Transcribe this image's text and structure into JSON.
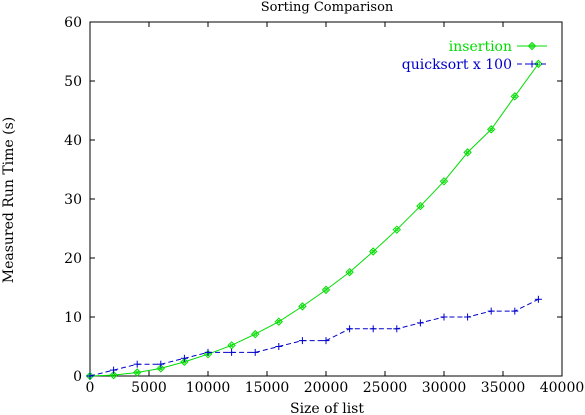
{
  "chart_data": {
    "type": "line",
    "title": "Sorting Comparison",
    "xlabel": "Size of list",
    "ylabel": "Measured Run Time (s)",
    "xlim": [
      0,
      40000
    ],
    "ylim": [
      0,
      60
    ],
    "xticks": [
      0,
      5000,
      10000,
      15000,
      20000,
      25000,
      30000,
      35000,
      40000
    ],
    "yticks": [
      0,
      10,
      20,
      30,
      40,
      50,
      60
    ],
    "grid": false,
    "legend_position": "top-right",
    "series": [
      {
        "name": "insertion",
        "color": "#00dd00",
        "marker": "diamond-circle",
        "x": [
          0,
          2000,
          4000,
          6000,
          8000,
          10000,
          12000,
          14000,
          16000,
          18000,
          20000,
          22000,
          24000,
          26000,
          28000,
          30000,
          32000,
          34000,
          36000,
          38000
        ],
        "y": [
          0,
          0.15,
          0.6,
          1.3,
          2.4,
          3.7,
          5.2,
          7.1,
          9.2,
          11.8,
          14.6,
          17.6,
          21.1,
          24.8,
          28.8,
          33.0,
          37.9,
          41.8,
          47.4,
          52.9
        ]
      },
      {
        "name": "quicksort x 100",
        "color": "#0000cc",
        "marker": "plus",
        "x": [
          0,
          2000,
          4000,
          6000,
          8000,
          10000,
          12000,
          14000,
          16000,
          18000,
          20000,
          22000,
          24000,
          26000,
          28000,
          30000,
          32000,
          34000,
          36000,
          38000
        ],
        "y": [
          0,
          1,
          2,
          2,
          3,
          4,
          4,
          4,
          5,
          6,
          6,
          8,
          8,
          8,
          9,
          10,
          10,
          11,
          11,
          13
        ]
      }
    ]
  }
}
